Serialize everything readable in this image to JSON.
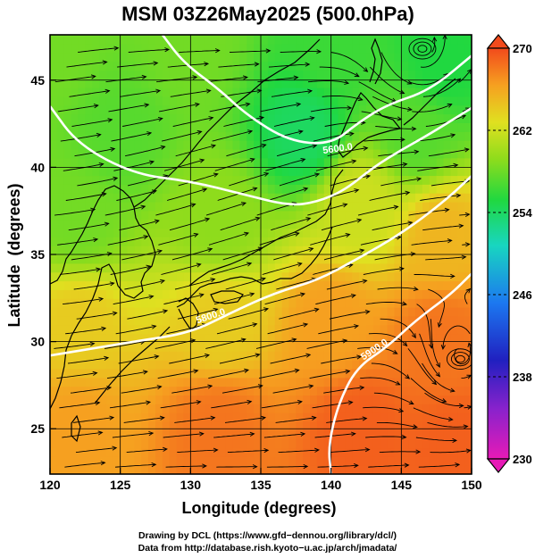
{
  "chart_data": {
    "type": "heatmap",
    "title": "MSM 03Z26May2025 (500.0hPa)",
    "xlabel": "Longitude (degrees)",
    "ylabel": "Latitude  (degrees)",
    "xlim": [
      120,
      150
    ],
    "ylim": [
      22.4,
      47.6
    ],
    "x_ticks": [
      "120",
      "125",
      "130",
      "135",
      "140",
      "145",
      "150"
    ],
    "y_ticks": [
      "25",
      "30",
      "35",
      "40",
      "45"
    ],
    "grid": true,
    "overlays": [
      "streamlines",
      "geopotential height contours",
      "coastlines"
    ],
    "colorbar": {
      "min": 230,
      "max": 270,
      "ticks": [
        "230",
        "238",
        "246",
        "254",
        "262",
        "270"
      ],
      "placement": "right",
      "extend": "both"
    },
    "temperature_anchors_K": [
      {
        "lon": 120,
        "lat": 47,
        "value": 258
      },
      {
        "lon": 130,
        "lat": 47,
        "value": 258
      },
      {
        "lon": 140,
        "lat": 47,
        "value": 256
      },
      {
        "lon": 148,
        "lat": 46,
        "value": 255
      },
      {
        "lon": 125,
        "lat": 42,
        "value": 257
      },
      {
        "lon": 138,
        "lat": 42,
        "value": 254
      },
      {
        "lon": 146,
        "lat": 42,
        "value": 257
      },
      {
        "lon": 122,
        "lat": 37,
        "value": 258
      },
      {
        "lon": 132,
        "lat": 37,
        "value": 259
      },
      {
        "lon": 142,
        "lat": 38,
        "value": 262
      },
      {
        "lon": 148,
        "lat": 36,
        "value": 265
      },
      {
        "lon": 122,
        "lat": 31,
        "value": 264
      },
      {
        "lon": 132,
        "lat": 31,
        "value": 264
      },
      {
        "lon": 140,
        "lat": 31,
        "value": 266
      },
      {
        "lon": 148,
        "lat": 30,
        "value": 268
      },
      {
        "lon": 122,
        "lat": 25,
        "value": 266
      },
      {
        "lon": 132,
        "lat": 25,
        "value": 268
      },
      {
        "lon": 142,
        "lat": 25,
        "value": 269
      },
      {
        "lon": 149,
        "lat": 24,
        "value": 269
      }
    ],
    "height_contours": [
      {
        "label": "5600.0",
        "level": 5600,
        "points": [
          [
            120,
            43.5
          ],
          [
            122,
            41.3
          ],
          [
            126,
            39.6
          ],
          [
            130,
            39.2
          ],
          [
            134,
            38.4
          ],
          [
            137,
            37.8
          ],
          [
            139,
            38.0
          ],
          [
            141,
            38.7
          ],
          [
            143,
            40.0
          ],
          [
            145,
            41.0
          ],
          [
            147,
            41.9
          ],
          [
            150,
            43.4
          ]
        ]
      },
      {
        "label": "5600.0",
        "level": 5600,
        "points": [
          [
            128,
            47.6
          ],
          [
            129.5,
            46.0
          ],
          [
            132,
            44.5
          ],
          [
            134,
            43.0
          ],
          [
            137,
            41.5
          ],
          [
            140,
            41.3
          ],
          [
            142,
            42.6
          ],
          [
            144,
            43.6
          ],
          [
            147,
            44.4
          ],
          [
            150,
            46.4
          ]
        ]
      },
      {
        "label": "5800.0",
        "level": 5800,
        "points": [
          [
            120,
            29.2
          ],
          [
            123,
            29.6
          ],
          [
            126,
            30.0
          ],
          [
            130,
            30.5
          ],
          [
            133,
            31.7
          ],
          [
            136,
            32.8
          ],
          [
            139,
            33.5
          ],
          [
            142,
            34.8
          ],
          [
            145,
            36.2
          ],
          [
            148,
            38.0
          ],
          [
            150,
            39.5
          ]
        ]
      },
      {
        "label": "5900.0",
        "level": 5900,
        "points": [
          [
            140,
            22.4
          ],
          [
            139.8,
            24.0
          ],
          [
            140.5,
            26.4
          ],
          [
            141.8,
            28.5
          ],
          [
            144,
            29.7
          ],
          [
            146,
            31.2
          ],
          [
            148.5,
            32.7
          ],
          [
            150,
            33.9
          ]
        ]
      }
    ],
    "contour_labels": [
      {
        "text": "5600.0",
        "lon": 140.5,
        "lat": 40.9,
        "rotate": -8
      },
      {
        "text": "5800.0",
        "lon": 131.5,
        "lat": 31.3,
        "rotate": -18
      },
      {
        "text": "5900.0",
        "lon": 143.2,
        "lat": 29.4,
        "rotate": -34
      }
    ],
    "vortices": [
      {
        "lon": 146.5,
        "lat": 46.8,
        "turns": 3
      },
      {
        "lon": 149.2,
        "lat": 29.0,
        "turns": 3
      }
    ]
  },
  "credits": {
    "line1": "Drawing by DCL (https://www.gfd−dennou.org/library/dcl/)",
    "line2": "Data from http://database.rish.kyoto−u.ac.jp/arch/jmadata/"
  }
}
